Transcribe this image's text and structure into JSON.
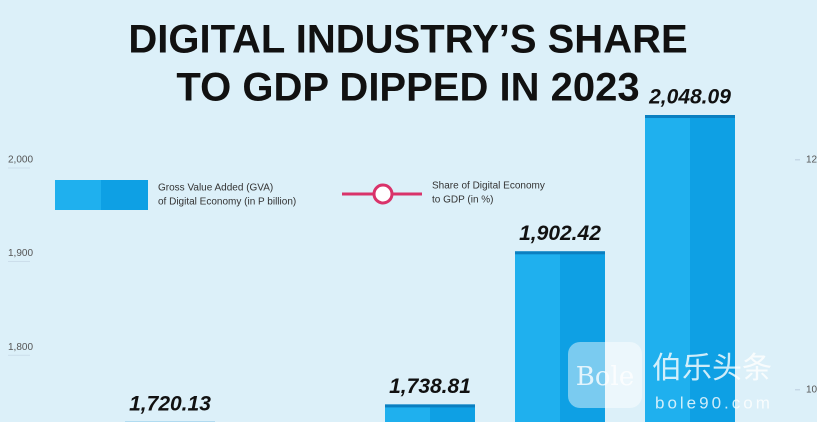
{
  "chart_data": {
    "type": "bar",
    "title": [
      "DIGITAL INDUSTRY’S SHARE",
      "TO GDP DIPPED IN 2023"
    ],
    "categories": [
      null,
      null,
      null,
      null,
      null
    ],
    "values": [
      1720.13,
      null,
      1738.81,
      1902.42,
      2048.09
    ],
    "value_labels": [
      "1,720.13",
      null,
      "1,738.81",
      "1,902.42",
      "2,048.09"
    ],
    "color": "#1fb0ee",
    "ylim": [
      1720,
      2171
    ],
    "yticks": [
      {
        "value": 1800,
        "label": "1,800"
      },
      {
        "value": 1900,
        "label": "1,900"
      },
      {
        "value": 2000,
        "label": "2,000"
      }
    ],
    "y2lim": [
      9.72,
      13.39
    ],
    "y2ticks": [
      10,
      12
    ],
    "legend": [
      {
        "name": [
          "Gross Value Added (GVA)",
          "of Digital Economy (in P billion)"
        ],
        "color": "#1fb0ee",
        "kind": "bar"
      },
      {
        "name": [
          "Share of Digital Economy",
          "to GDP (in %)"
        ],
        "color": "#d9336a",
        "kind": "line"
      }
    ],
    "watermark": [
      "Bole",
      "伯乐头条",
      "bole90.com"
    ]
  }
}
